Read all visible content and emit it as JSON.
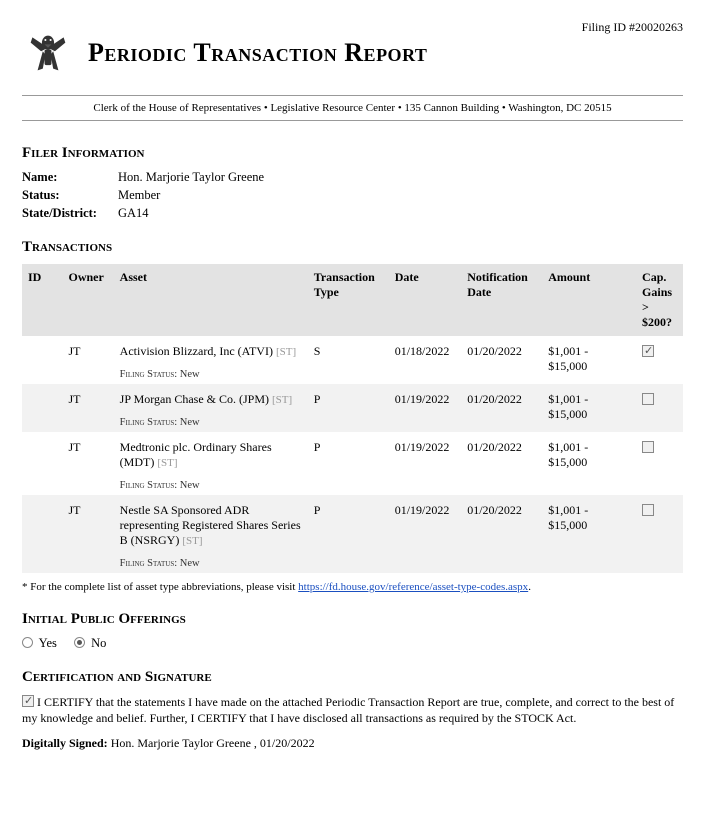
{
  "filing_id_label": "Filing ID #",
  "filing_id": "20020263",
  "title": "Periodic Transaction Report",
  "clerk_line": "Clerk of the House of Representatives • Legislative Resource Center • 135 Cannon Building • Washington, DC 20515",
  "sections": {
    "filer": "Filer Information",
    "transactions": "Transactions",
    "ipo": "Initial Public Offerings",
    "cert": "Certification and Signature"
  },
  "filer": {
    "name_label": "Name:",
    "name": "Hon. Marjorie Taylor Greene",
    "status_label": "Status:",
    "status": "Member",
    "district_label": "State/District:",
    "district": "GA14"
  },
  "tx_headers": {
    "id": "ID",
    "owner": "Owner",
    "asset": "Asset",
    "type": "Transaction Type",
    "date": "Date",
    "notif": "Notification Date",
    "amount": "Amount",
    "cap": "Cap. Gains > $200?"
  },
  "asset_tag": "[ST]",
  "filing_status_label": "Filing Status:",
  "filing_status_value": "New",
  "tx": [
    {
      "owner": "JT",
      "asset": "Activision Blizzard, Inc (ATVI)",
      "type": "S",
      "date": "01/18/2022",
      "notif": "01/20/2022",
      "amount": "$1,001 - $15,000",
      "cap": true,
      "alt": false
    },
    {
      "owner": "JT",
      "asset": "JP Morgan Chase & Co. (JPM)",
      "type": "P",
      "date": "01/19/2022",
      "notif": "01/20/2022",
      "amount": "$1,001 - $15,000",
      "cap": false,
      "alt": true
    },
    {
      "owner": "JT",
      "asset": "Medtronic plc. Ordinary Shares (MDT)",
      "type": "P",
      "date": "01/19/2022",
      "notif": "01/20/2022",
      "amount": "$1,001 - $15,000",
      "cap": false,
      "alt": false
    },
    {
      "owner": "JT",
      "asset": "Nestle SA Sponsored ADR representing Registered Shares Series B (NSRGY)",
      "type": "P",
      "date": "01/19/2022",
      "notif": "01/20/2022",
      "amount": "$1,001 - $15,000",
      "cap": false,
      "alt": true
    }
  ],
  "footnote_prefix": "* For the complete list of asset type abbreviations, please visit ",
  "footnote_link": "https://fd.house.gov/reference/asset-type-codes.aspx",
  "footnote_suffix": ".",
  "ipo": {
    "yes": "Yes",
    "no": "No",
    "selected": "no"
  },
  "cert_text": "I CERTIFY that the statements I have made on the attached Periodic Transaction Report are true, complete, and correct to the best of my knowledge and belief. Further, I CERTIFY that I have disclosed all transactions as required by the STOCK Act.",
  "signed_label": "Digitally Signed:",
  "signed_value": "Hon. Marjorie Taylor Greene , 01/20/2022"
}
